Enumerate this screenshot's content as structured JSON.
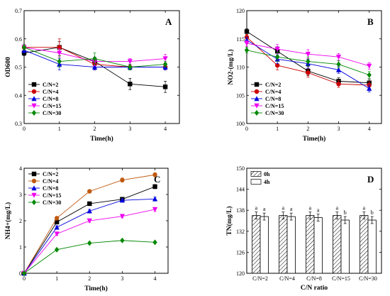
{
  "chart_data": [
    {
      "type": "line",
      "panel": "A",
      "ylabel": "OD600",
      "xlabel": "Time(h)",
      "xlim": [
        0,
        4.4
      ],
      "ylim": [
        0.3,
        0.7
      ],
      "xticks": [
        0,
        1,
        2,
        3,
        4
      ],
      "yticks": [
        0.3,
        0.4,
        0.5,
        0.6,
        0.7
      ],
      "grid": false,
      "legend_position": "bottom-left",
      "x": [
        0,
        1,
        2,
        3,
        4
      ],
      "series": [
        {
          "name": "C/N=2",
          "color": "#000000",
          "marker": "square",
          "values": [
            0.55,
            0.57,
            0.52,
            0.44,
            0.43
          ],
          "errors": [
            0.01,
            0.02,
            0.015,
            0.02,
            0.02
          ]
        },
        {
          "name": "C/N=4",
          "color": "#cc0000",
          "marker": "circle",
          "values": [
            0.57,
            0.57,
            0.51,
            0.5,
            0.5
          ],
          "errors": [
            0.01,
            0.03,
            0.02,
            0.01,
            0.01
          ]
        },
        {
          "name": "C/N=8",
          "color": "#0000dd",
          "marker": "triangle-up",
          "values": [
            0.56,
            0.51,
            0.5,
            0.5,
            0.5
          ],
          "errors": [
            0.01,
            0.02,
            0.01,
            0.01,
            0.01
          ]
        },
        {
          "name": "C/N=15",
          "color": "#ee00ee",
          "marker": "triangle-down",
          "values": [
            0.57,
            0.55,
            0.52,
            0.52,
            0.53
          ],
          "errors": [
            0.01,
            0.015,
            0.015,
            0.01,
            0.015
          ]
        },
        {
          "name": "C/N=30",
          "color": "#008800",
          "marker": "diamond",
          "values": [
            0.57,
            0.52,
            0.53,
            0.5,
            0.51
          ],
          "errors": [
            0.01,
            0.02,
            0.02,
            0.01,
            0.01
          ]
        }
      ]
    },
    {
      "type": "line",
      "panel": "B",
      "ylabel": "NO2-(mg/L)",
      "xlabel": "Time(h)",
      "xlim": [
        0,
        4.4
      ],
      "ylim": [
        100,
        120
      ],
      "xticks": [
        0,
        1,
        2,
        3,
        4
      ],
      "yticks": [
        100,
        105,
        110,
        115,
        120
      ],
      "grid": false,
      "legend_position": "bottom-left",
      "x": [
        0,
        1,
        2,
        3,
        4
      ],
      "series": [
        {
          "name": "C/N=2",
          "color": "#000000",
          "marker": "square",
          "values": [
            116.3,
            112.8,
            109.3,
            107.5,
            107.2
          ],
          "errors": [
            0.5,
            0.8,
            0.8,
            0.6,
            0.6
          ]
        },
        {
          "name": "C/N=4",
          "color": "#cc0000",
          "marker": "circle",
          "values": [
            115.3,
            110.3,
            109.0,
            107.0,
            106.8
          ],
          "errors": [
            0.5,
            0.8,
            0.8,
            0.6,
            0.6
          ]
        },
        {
          "name": "C/N=8",
          "color": "#0000dd",
          "marker": "triangle-up",
          "values": [
            114.8,
            111.4,
            110.6,
            109.5,
            106.2
          ],
          "errors": [
            0.5,
            0.8,
            0.8,
            0.6,
            0.6
          ]
        },
        {
          "name": "C/N=15",
          "color": "#ee00ee",
          "marker": "triangle-down",
          "values": [
            114.2,
            113.2,
            112.3,
            111.8,
            110.2
          ],
          "errors": [
            0.5,
            0.8,
            0.8,
            0.6,
            0.6
          ]
        },
        {
          "name": "C/N=30",
          "color": "#008800",
          "marker": "diamond",
          "values": [
            113.0,
            111.8,
            111.0,
            110.5,
            108.6
          ],
          "errors": [
            0.5,
            0.8,
            0.8,
            0.6,
            0.6
          ]
        }
      ]
    },
    {
      "type": "line",
      "panel": "C",
      "ylabel": "NH4+(mg/L)",
      "xlabel": "Time(h)",
      "xlim": [
        0,
        4.4
      ],
      "ylim": [
        0,
        4
      ],
      "xticks": [
        0,
        1,
        2,
        3,
        4
      ],
      "yticks": [
        0,
        1,
        2,
        3,
        4
      ],
      "grid": false,
      "legend_position": "top-left",
      "x": [
        0,
        1,
        2,
        3,
        4
      ],
      "series": [
        {
          "name": "C/N=2",
          "color": "#000000",
          "marker": "square",
          "values": [
            0,
            1.95,
            2.65,
            2.82,
            3.3
          ],
          "errors": [
            0,
            0.06,
            0.06,
            0.06,
            0.08
          ]
        },
        {
          "name": "C/N=4",
          "color": "#c05a10",
          "marker": "circle",
          "values": [
            0,
            2.1,
            3.12,
            3.55,
            3.75
          ],
          "errors": [
            0,
            0.06,
            0.06,
            0.08,
            0.08
          ]
        },
        {
          "name": "C/N=8",
          "color": "#0000dd",
          "marker": "triangle-up",
          "values": [
            0,
            1.75,
            2.37,
            2.78,
            2.83
          ],
          "errors": [
            0,
            0.06,
            0.06,
            0.06,
            0.08
          ]
        },
        {
          "name": "C/N=15",
          "color": "#ee00ee",
          "marker": "triangle-down",
          "values": [
            0,
            1.5,
            2.0,
            2.17,
            2.43
          ],
          "errors": [
            0,
            0.06,
            0.06,
            0.06,
            0.08
          ]
        },
        {
          "name": "C/N=30",
          "color": "#008800",
          "marker": "diamond",
          "values": [
            0,
            0.9,
            1.15,
            1.25,
            1.18
          ],
          "errors": [
            0,
            0.03,
            0.03,
            0.03,
            0.03
          ]
        }
      ]
    },
    {
      "type": "bar",
      "panel": "D",
      "ylabel": "TN(mg/L)",
      "xlabel": "C/N ratio",
      "ylim": [
        120,
        150
      ],
      "yticks": [
        120,
        126,
        132,
        138,
        144,
        150
      ],
      "grid": false,
      "legend_position": "top-left",
      "categories": [
        "C/N=2",
        "C/N=4",
        "C/N=8",
        "C/N=15",
        "C/N=30"
      ],
      "series": [
        {
          "name": "0h",
          "pattern": "hatched",
          "values": [
            136.5,
            136.5,
            136.5,
            136.5,
            136.5
          ],
          "errors": [
            1.0,
            1.0,
            1.0,
            1.0,
            1.0
          ],
          "labels": [
            "a",
            "a",
            "a",
            "a",
            "a"
          ]
        },
        {
          "name": "4h",
          "pattern": "plain",
          "values": [
            136.2,
            136.2,
            135.9,
            135.2,
            135.2
          ],
          "errors": [
            1.0,
            1.0,
            1.0,
            1.0,
            1.0
          ],
          "labels": [
            "a",
            "a",
            "a",
            "b",
            "b"
          ]
        }
      ]
    }
  ]
}
